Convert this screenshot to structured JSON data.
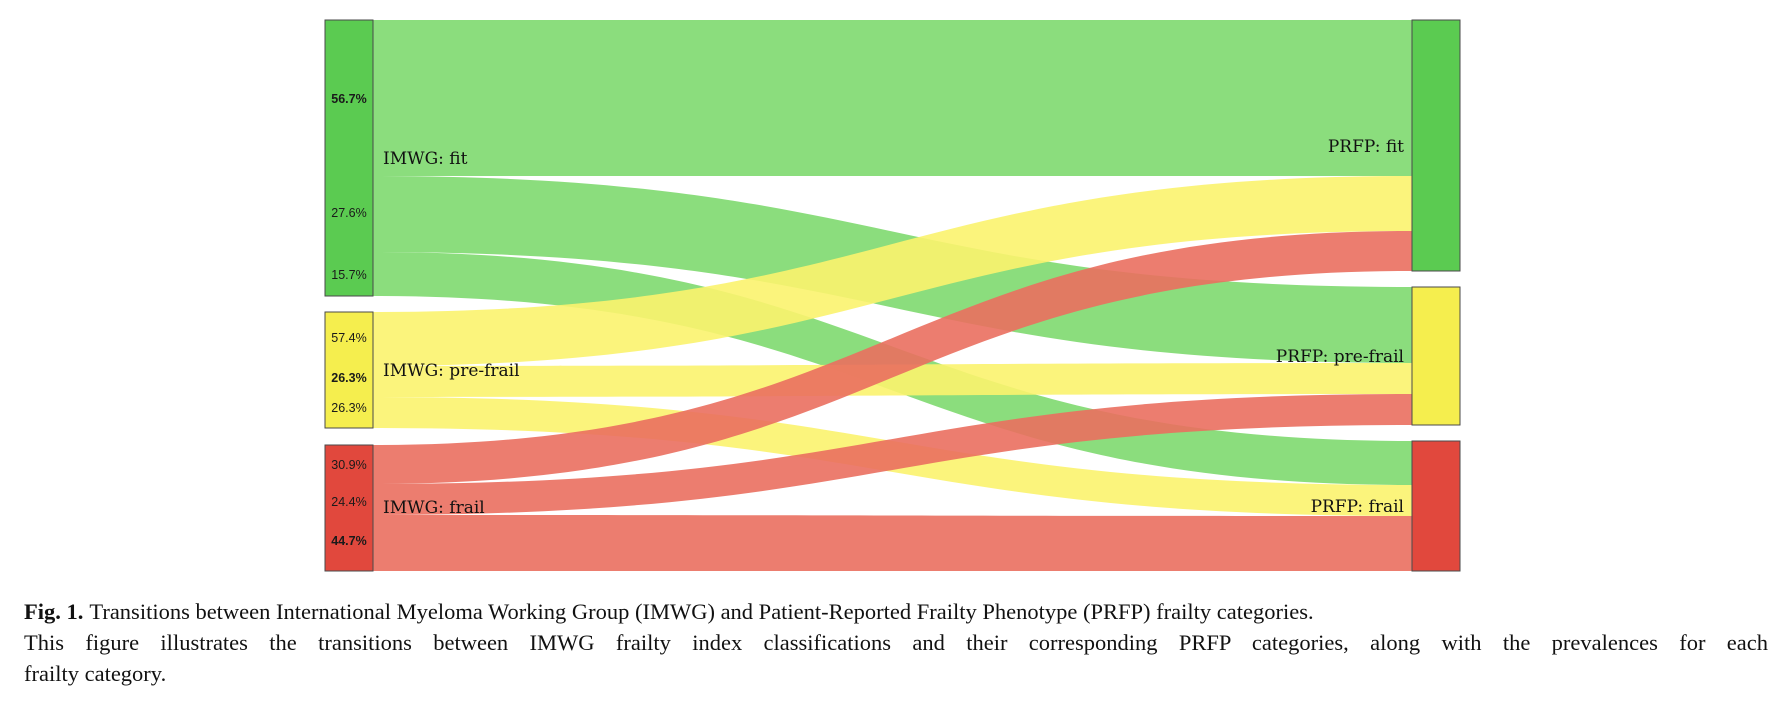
{
  "colors": {
    "fit": "#5bcb51",
    "pre_frail": "#f5ee4e",
    "frail": "#e1483d",
    "fit_link": "#7ed96f",
    "pre_frail_link": "#fbf36e",
    "frail_link": "#ea6f5f",
    "node_border": "#4a4a4a"
  },
  "diagram": {
    "source_nodes": [
      {
        "key": "fit",
        "label": "IMWG: fit",
        "shares": [
          "56.7%",
          "27.6%",
          "15.7%"
        ]
      },
      {
        "key": "pre_frail",
        "label": "IMWG: pre-frail",
        "shares": [
          "57.4%",
          "26.3%",
          "26.3%"
        ]
      },
      {
        "key": "frail",
        "label": "IMWG: frail",
        "shares": [
          "30.9%",
          "24.4%",
          "44.7%"
        ]
      }
    ],
    "target_nodes": [
      {
        "key": "fit",
        "label": "PRFP: fit"
      },
      {
        "key": "pre_frail",
        "label": "PRFP: pre-frail"
      },
      {
        "key": "frail",
        "label": "PRFP: frail"
      }
    ],
    "flows": [
      {
        "from": "fit",
        "to": "fit",
        "share": "56.7%"
      },
      {
        "from": "fit",
        "to": "pre_frail",
        "share": "27.6%"
      },
      {
        "from": "fit",
        "to": "frail",
        "share": "15.7%"
      },
      {
        "from": "pre_frail",
        "to": "fit",
        "share": "57.4%"
      },
      {
        "from": "pre_frail",
        "to": "pre_frail",
        "share": "26.3%"
      },
      {
        "from": "pre_frail",
        "to": "frail",
        "share": "26.3%"
      },
      {
        "from": "frail",
        "to": "fit",
        "share": "30.9%"
      },
      {
        "from": "frail",
        "to": "pre_frail",
        "share": "24.4%"
      },
      {
        "from": "frail",
        "to": "frail",
        "share": "44.7%"
      }
    ]
  },
  "caption": {
    "fig_label": "Fig. 1.",
    "title": "Transitions between International Myeloma Working Group (IMWG) and Patient-Reported Frailty Phenotype (PRFP) frailty categories.",
    "body_line1": "This figure illustrates the transitions between IMWG frailty index classifications and their corresponding PRFP categories, along with the prevalences for each",
    "body_line2": "frailty category."
  }
}
